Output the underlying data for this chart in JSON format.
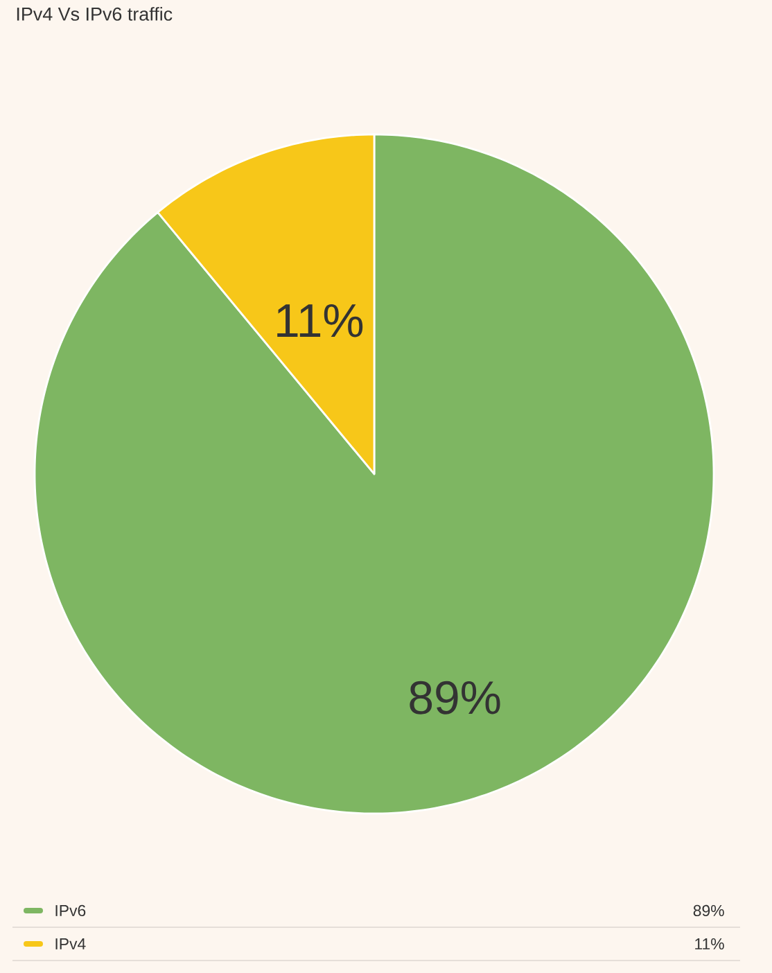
{
  "chart_data": {
    "type": "pie",
    "title": "IPv4 Vs IPv6 traffic",
    "categories": [
      "IPv6",
      "IPv4"
    ],
    "values": [
      89,
      11
    ],
    "colors": [
      "#7eb662",
      "#f7c719"
    ],
    "value_labels": [
      "89%",
      "11%"
    ],
    "legend": "bottom"
  }
}
